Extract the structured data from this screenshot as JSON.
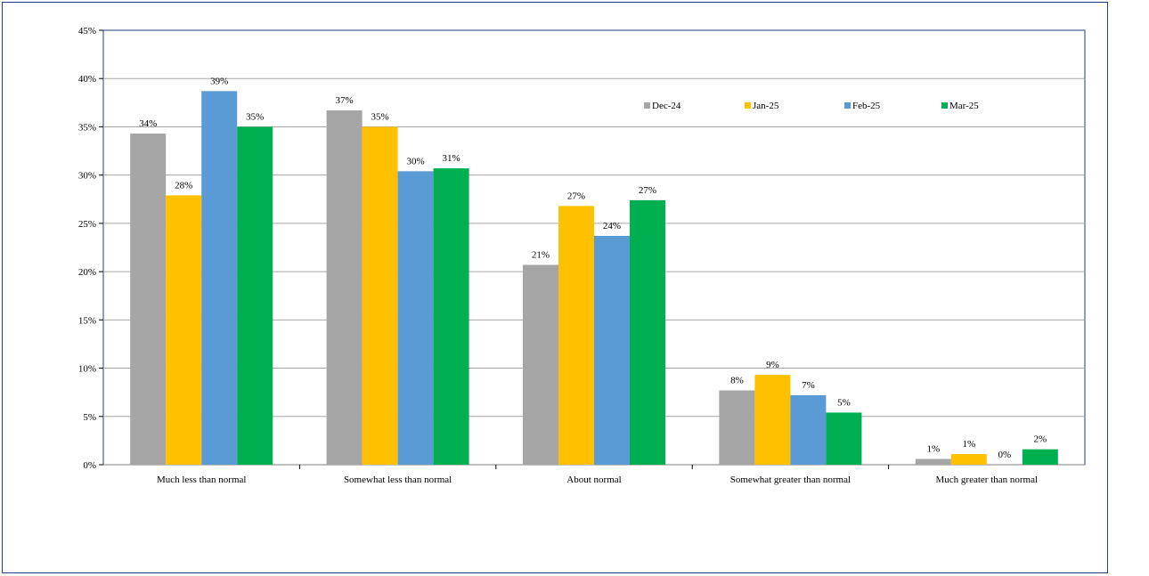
{
  "chart_data": {
    "type": "bar",
    "categories": [
      "Much less than normal",
      "Somewhat less than normal",
      "About normal",
      "Somewhat greater than normal",
      "Much greater than normal"
    ],
    "series": [
      {
        "name": "Dec-24",
        "color": "#a5a5a5",
        "values": [
          34.3,
          36.7,
          20.7,
          7.7,
          0.6
        ],
        "labels": [
          "34%",
          "37%",
          "21%",
          "8%",
          "1%"
        ]
      },
      {
        "name": "Jan-25",
        "color": "#ffc000",
        "values": [
          27.9,
          35.0,
          26.8,
          9.3,
          1.1
        ],
        "labels": [
          "28%",
          "35%",
          "27%",
          "9%",
          "1%"
        ]
      },
      {
        "name": "Feb-25",
        "color": "#5b9bd5",
        "values": [
          38.7,
          30.4,
          23.7,
          7.2,
          0.0
        ],
        "labels": [
          "39%",
          "30%",
          "24%",
          "7%",
          "0%"
        ]
      },
      {
        "name": "Mar-25",
        "color": "#00b050",
        "values": [
          35.0,
          30.7,
          27.4,
          5.4,
          1.6
        ],
        "labels": [
          "35%",
          "31%",
          "27%",
          "5%",
          "2%"
        ]
      }
    ],
    "ylim": [
      0,
      45
    ],
    "yticks": [
      "0%",
      "5%",
      "10%",
      "15%",
      "20%",
      "25%",
      "30%",
      "35%",
      "40%",
      "45%"
    ],
    "grid": true,
    "legend_position": "top-right",
    "title": "",
    "xlabel": "",
    "ylabel": ""
  }
}
